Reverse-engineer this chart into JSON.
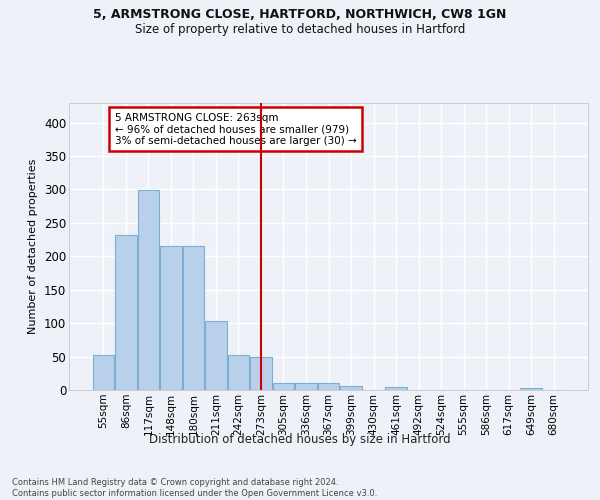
{
  "title1": "5, ARMSTRONG CLOSE, HARTFORD, NORTHWICH, CW8 1GN",
  "title2": "Size of property relative to detached houses in Hartford",
  "xlabel": "Distribution of detached houses by size in Hartford",
  "ylabel": "Number of detached properties",
  "categories": [
    "55sqm",
    "86sqm",
    "117sqm",
    "148sqm",
    "180sqm",
    "211sqm",
    "242sqm",
    "273sqm",
    "305sqm",
    "336sqm",
    "367sqm",
    "399sqm",
    "430sqm",
    "461sqm",
    "492sqm",
    "524sqm",
    "555sqm",
    "586sqm",
    "617sqm",
    "649sqm",
    "680sqm"
  ],
  "values": [
    53,
    232,
    299,
    215,
    215,
    103,
    53,
    50,
    10,
    10,
    10,
    6,
    0,
    5,
    0,
    0,
    0,
    0,
    0,
    3,
    0
  ],
  "bar_color": "#b8d0ea",
  "bar_edge_color": "#7aafd4",
  "vline_x_index": 7,
  "vline_color": "#cc0000",
  "annotation_text": "5 ARMSTRONG CLOSE: 263sqm\n← 96% of detached houses are smaller (979)\n3% of semi-detached houses are larger (30) →",
  "annotation_box_color": "#ffffff",
  "annotation_box_edge_color": "#cc0000",
  "footer_text": "Contains HM Land Registry data © Crown copyright and database right 2024.\nContains public sector information licensed under the Open Government Licence v3.0.",
  "bg_color": "#eef2f8",
  "grid_color": "#ffffff",
  "ylim": [
    0,
    430
  ],
  "yticks": [
    0,
    50,
    100,
    150,
    200,
    250,
    300,
    350,
    400
  ]
}
